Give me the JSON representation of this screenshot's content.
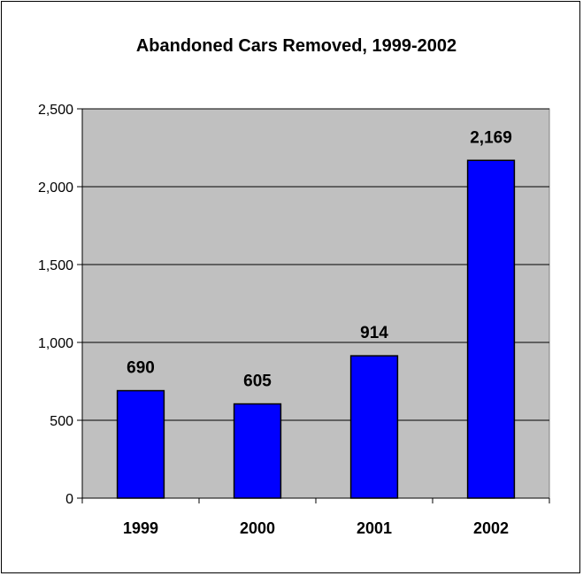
{
  "chart_data": {
    "type": "bar",
    "title": "Abandoned Cars Removed, 1999-2002",
    "categories": [
      "1999",
      "2000",
      "2001",
      "2002"
    ],
    "values": [
      690,
      605,
      914,
      2169
    ],
    "data_labels": [
      "690",
      "605",
      "914",
      "2,169"
    ],
    "yticks": [
      0,
      500,
      1000,
      1500,
      2000,
      2500
    ],
    "ytick_labels": [
      "0",
      "500",
      "1,000",
      "1,500",
      "2,000",
      "2,500"
    ],
    "ylim": [
      0,
      2500
    ],
    "xlabel": "",
    "ylabel": "",
    "grid": true,
    "legend": "none",
    "colors": {
      "bar": "#0000ff",
      "plot_background": "#c0c0c0",
      "gridline": "#000000"
    }
  }
}
